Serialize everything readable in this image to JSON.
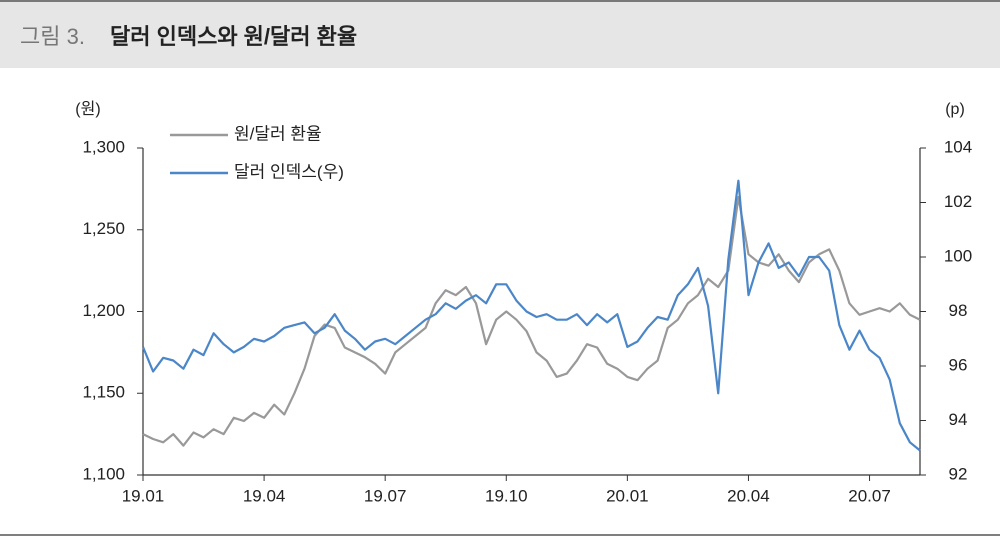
{
  "chart_data": {
    "type": "line",
    "figure_label": "그림 3.",
    "title": "달러 인덱스와 원/달러 환율",
    "y_unit": "(원)",
    "y2_unit": "(p)",
    "legend": "upper left",
    "categories": [
      "19.01",
      null,
      null,
      null,
      null,
      null,
      null,
      null,
      null,
      null,
      null,
      null,
      "19.04",
      null,
      null,
      null,
      null,
      null,
      null,
      null,
      null,
      null,
      null,
      null,
      "19.07",
      null,
      null,
      null,
      null,
      null,
      null,
      null,
      null,
      null,
      null,
      null,
      "19.10",
      null,
      null,
      null,
      null,
      null,
      null,
      null,
      null,
      null,
      null,
      null,
      "20.01",
      null,
      null,
      null,
      null,
      null,
      null,
      null,
      null,
      null,
      null,
      null,
      "20.04",
      null,
      null,
      null,
      null,
      null,
      null,
      null,
      null,
      null,
      null,
      null,
      "20.07",
      null,
      null,
      null,
      null,
      null
    ],
    "series": [
      {
        "name": "원/달러 환율",
        "color": "#999999",
        "axis": "y",
        "values": [
          1125,
          1122,
          1120,
          1125,
          1118,
          1126,
          1123,
          1128,
          1125,
          1135,
          1133,
          1138,
          1135,
          1143,
          1137,
          1150,
          1165,
          1185,
          1192,
          1190,
          1178,
          1175,
          1172,
          1168,
          1162,
          1175,
          1180,
          1185,
          1190,
          1205,
          1213,
          1210,
          1215,
          1205,
          1180,
          1195,
          1200,
          1195,
          1188,
          1175,
          1170,
          1160,
          1162,
          1170,
          1180,
          1178,
          1168,
          1165,
          1160,
          1158,
          1165,
          1170,
          1190,
          1195,
          1205,
          1210,
          1220,
          1215,
          1225,
          1270,
          1235,
          1230,
          1228,
          1235,
          1225,
          1218,
          1230,
          1235,
          1238,
          1225,
          1205,
          1198,
          1200,
          1202,
          1200,
          1205,
          1198,
          1195
        ]
      },
      {
        "name": "달러 인덱스(우)",
        "color": "#4a86c8",
        "axis": "y2",
        "values": [
          96.7,
          95.8,
          96.3,
          96.2,
          95.9,
          96.6,
          96.4,
          97.2,
          96.8,
          96.5,
          96.7,
          97.0,
          96.9,
          97.1,
          97.4,
          97.5,
          97.6,
          97.2,
          97.4,
          97.9,
          97.3,
          97.0,
          96.6,
          96.9,
          97.0,
          96.8,
          97.1,
          97.4,
          97.7,
          97.9,
          98.3,
          98.1,
          98.4,
          98.6,
          98.3,
          99.0,
          99.0,
          98.4,
          98.0,
          97.8,
          97.9,
          97.7,
          97.7,
          97.9,
          97.5,
          97.9,
          97.6,
          97.9,
          96.7,
          96.9,
          97.4,
          97.8,
          97.7,
          98.6,
          99.0,
          99.6,
          98.2,
          95.0,
          99.9,
          102.8,
          98.6,
          99.8,
          100.5,
          99.6,
          99.8,
          99.3,
          100.0,
          100.0,
          99.5,
          97.5,
          96.6,
          97.3,
          96.6,
          96.3,
          95.5,
          93.9,
          93.2,
          92.9
        ]
      }
    ],
    "ylim": [
      1100,
      1300
    ],
    "yticks": [
      {
        "value": 1100,
        "label": "1,100"
      },
      {
        "value": 1150,
        "label": "1,150"
      },
      {
        "value": 1200,
        "label": "1,200"
      },
      {
        "value": 1250,
        "label": "1,250"
      },
      {
        "value": 1300,
        "label": "1,300"
      }
    ],
    "y2lim": [
      92,
      104
    ],
    "y2ticks": [
      92,
      94,
      96,
      98,
      100,
      102,
      104
    ]
  }
}
